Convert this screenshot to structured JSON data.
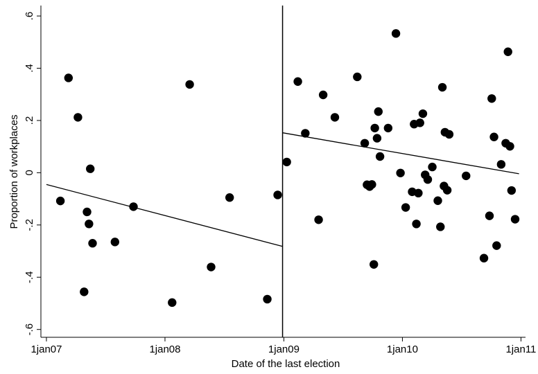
{
  "chart_data": {
    "type": "scatter",
    "xlabel": "Date of the last election",
    "ylabel": "Proportion of workplaces",
    "xlim": [
      "2006-12-15",
      "2011-01-15"
    ],
    "ylim": [
      -0.63,
      0.64
    ],
    "x_ticks": [
      {
        "date": "2007-01-01",
        "label": "1jan07"
      },
      {
        "date": "2008-01-01",
        "label": "1jan08"
      },
      {
        "date": "2009-01-01",
        "label": "1jan09"
      },
      {
        "date": "2010-01-01",
        "label": "1jan10"
      },
      {
        "date": "2011-01-01",
        "label": "1jan11"
      }
    ],
    "y_ticks": [
      {
        "value": -0.6,
        "label": "-.6"
      },
      {
        "value": -0.4,
        "label": "-.4"
      },
      {
        "value": -0.2,
        "label": "-.2"
      },
      {
        "value": 0,
        "label": "0"
      },
      {
        "value": 0.2,
        "label": ".2"
      },
      {
        "value": 0.4,
        "label": ".4"
      },
      {
        "value": 0.6,
        "label": ".6"
      }
    ],
    "grid": false,
    "cutoff_line": {
      "date": "2008-12-28"
    },
    "points": [
      {
        "date": "2007-02-13",
        "y": -0.108
      },
      {
        "date": "2007-03-10",
        "y": 0.363
      },
      {
        "date": "2007-04-08",
        "y": 0.212
      },
      {
        "date": "2007-04-27",
        "y": -0.456
      },
      {
        "date": "2007-05-06",
        "y": -0.15
      },
      {
        "date": "2007-05-12",
        "y": -0.196
      },
      {
        "date": "2007-05-16",
        "y": 0.015
      },
      {
        "date": "2007-05-23",
        "y": -0.27
      },
      {
        "date": "2007-07-31",
        "y": -0.265
      },
      {
        "date": "2007-09-26",
        "y": -0.13
      },
      {
        "date": "2008-01-23",
        "y": -0.497
      },
      {
        "date": "2008-03-17",
        "y": 0.338
      },
      {
        "date": "2008-05-22",
        "y": -0.361
      },
      {
        "date": "2008-07-18",
        "y": -0.095
      },
      {
        "date": "2008-11-11",
        "y": -0.484
      },
      {
        "date": "2008-12-13",
        "y": -0.085
      },
      {
        "date": "2009-01-10",
        "y": 0.041
      },
      {
        "date": "2009-02-13",
        "y": 0.349
      },
      {
        "date": "2009-03-08",
        "y": 0.151
      },
      {
        "date": "2009-04-18",
        "y": -0.18
      },
      {
        "date": "2009-05-02",
        "y": 0.298
      },
      {
        "date": "2009-06-07",
        "y": 0.212
      },
      {
        "date": "2009-08-15",
        "y": 0.367
      },
      {
        "date": "2009-09-07",
        "y": 0.113
      },
      {
        "date": "2009-09-14",
        "y": -0.046
      },
      {
        "date": "2009-09-22",
        "y": -0.053
      },
      {
        "date": "2009-09-29",
        "y": -0.045
      },
      {
        "date": "2009-10-05",
        "y": -0.351
      },
      {
        "date": "2009-10-08",
        "y": 0.171
      },
      {
        "date": "2009-10-15",
        "y": 0.132
      },
      {
        "date": "2009-10-19",
        "y": 0.234
      },
      {
        "date": "2009-10-24",
        "y": 0.062
      },
      {
        "date": "2009-11-18",
        "y": 0.171
      },
      {
        "date": "2009-12-12",
        "y": 0.533
      },
      {
        "date": "2009-12-26",
        "y": -0.001
      },
      {
        "date": "2010-01-11",
        "y": -0.133
      },
      {
        "date": "2010-01-31",
        "y": -0.073
      },
      {
        "date": "2010-02-06",
        "y": 0.186
      },
      {
        "date": "2010-02-13",
        "y": -0.196
      },
      {
        "date": "2010-02-19",
        "y": -0.078
      },
      {
        "date": "2010-02-24",
        "y": 0.191
      },
      {
        "date": "2010-03-05",
        "y": 0.226
      },
      {
        "date": "2010-03-12",
        "y": -0.008
      },
      {
        "date": "2010-03-20",
        "y": -0.026
      },
      {
        "date": "2010-04-03",
        "y": 0.022
      },
      {
        "date": "2010-04-20",
        "y": -0.107
      },
      {
        "date": "2010-04-28",
        "y": -0.207
      },
      {
        "date": "2010-05-04",
        "y": 0.327
      },
      {
        "date": "2010-05-09",
        "y": -0.051
      },
      {
        "date": "2010-05-12",
        "y": 0.155
      },
      {
        "date": "2010-05-19",
        "y": -0.067
      },
      {
        "date": "2010-05-25",
        "y": 0.147
      },
      {
        "date": "2010-07-16",
        "y": -0.012
      },
      {
        "date": "2010-09-09",
        "y": -0.327
      },
      {
        "date": "2010-09-26",
        "y": -0.165
      },
      {
        "date": "2010-10-03",
        "y": 0.284
      },
      {
        "date": "2010-10-10",
        "y": 0.137
      },
      {
        "date": "2010-10-18",
        "y": -0.279
      },
      {
        "date": "2010-11-01",
        "y": 0.032
      },
      {
        "date": "2010-11-15",
        "y": 0.113
      },
      {
        "date": "2010-11-22",
        "y": 0.463
      },
      {
        "date": "2010-11-28",
        "y": 0.101
      },
      {
        "date": "2010-12-03",
        "y": -0.068
      },
      {
        "date": "2010-12-14",
        "y": -0.178
      }
    ],
    "fit_lines": [
      {
        "start": {
          "date": "2007-01-01",
          "y": -0.045
        },
        "end": {
          "date": "2008-12-28",
          "y": -0.282
        }
      },
      {
        "start": {
          "date": "2008-12-28",
          "y": 0.153
        },
        "end": {
          "date": "2010-12-26",
          "y": -0.004
        }
      }
    ]
  }
}
